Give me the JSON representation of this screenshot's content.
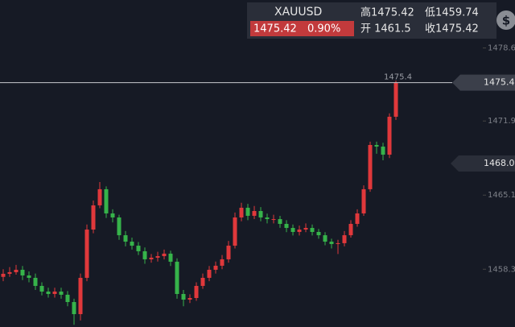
{
  "chart_data": {
    "type": "candlestick",
    "quote": {
      "symbol": "XAUUSD",
      "last": "1475.42",
      "change": "0.90%",
      "high": "高1475.42",
      "low": "低1459.74",
      "open": "开 1461.5",
      "close": "收1475.42"
    },
    "icon_label": "$",
    "up_color": "#e0383b",
    "down_color": "#36b34a",
    "ylim": [
      1453.0,
      1483.0
    ],
    "yticks": [
      1458.3,
      1465.1,
      1471.9,
      1478.6
    ],
    "price_line": {
      "value": 1475.42,
      "label": "1475.4",
      "tag": "1475.42"
    },
    "marker": {
      "value": 1468.0,
      "label": "1468.0"
    },
    "open": [
      1457.6,
      1457.88,
      1458.03,
      1458.25,
      1457.73,
      1457.51,
      1456.77,
      1456.25,
      1456.03,
      1456.25,
      1455.96,
      1455.29,
      1454.18,
      1457.51,
      1461.94,
      1464.16,
      1465.64,
      1463.42,
      1463.05,
      1461.42,
      1460.83,
      1460.46,
      1459.95,
      1459.21,
      1459.36,
      1459.5,
      1459.73,
      1458.99,
      1456.03,
      1455.51,
      1455.66,
      1456.77,
      1457.51,
      1458.25,
      1458.62,
      1459.21,
      1460.46,
      1463.05,
      1463.94,
      1463.2,
      1463.64,
      1463.05,
      1462.9,
      1462.9,
      1462.46,
      1462.09,
      1461.72,
      1461.94,
      1462.09,
      1461.72,
      1461.42,
      1460.83,
      1460.61,
      1460.69,
      1461.42,
      1462.46,
      1463.42,
      1465.64,
      1469.7,
      1469.55,
      1468.81,
      1472.29
    ],
    "close": [
      1457.88,
      1458.03,
      1458.25,
      1457.73,
      1457.51,
      1456.77,
      1456.25,
      1456.03,
      1456.25,
      1455.96,
      1455.29,
      1454.18,
      1457.51,
      1461.94,
      1464.16,
      1465.64,
      1463.42,
      1463.05,
      1461.42,
      1460.83,
      1460.46,
      1459.95,
      1459.21,
      1459.36,
      1459.5,
      1459.73,
      1458.99,
      1456.03,
      1455.51,
      1455.66,
      1456.77,
      1457.51,
      1458.25,
      1458.62,
      1459.21,
      1460.46,
      1463.05,
      1463.94,
      1463.2,
      1463.64,
      1463.05,
      1462.9,
      1462.9,
      1462.46,
      1462.09,
      1461.72,
      1461.94,
      1462.09,
      1461.72,
      1461.42,
      1460.83,
      1460.61,
      1460.69,
      1461.42,
      1462.46,
      1463.42,
      1465.64,
      1469.7,
      1469.55,
      1468.81,
      1472.29,
      1475.42
    ],
    "high": [
      1458.3,
      1458.5,
      1458.7,
      1458.6,
      1458.1,
      1457.9,
      1457.1,
      1456.6,
      1456.6,
      1456.6,
      1456.3,
      1455.6,
      1457.9,
      1462.4,
      1464.6,
      1466.3,
      1465.9,
      1463.8,
      1463.3,
      1461.8,
      1461.2,
      1460.8,
      1460.3,
      1459.7,
      1459.9,
      1460.1,
      1460.0,
      1459.3,
      1456.4,
      1456.0,
      1457.1,
      1457.9,
      1458.6,
      1459.0,
      1459.6,
      1460.9,
      1463.5,
      1464.4,
      1464.3,
      1464.1,
      1464.0,
      1463.4,
      1463.3,
      1463.2,
      1462.8,
      1462.4,
      1462.3,
      1462.5,
      1462.4,
      1462.0,
      1461.7,
      1461.1,
      1461.0,
      1461.8,
      1462.8,
      1463.8,
      1466.0,
      1470.0,
      1470.0,
      1469.9,
      1472.6,
      1475.6
    ],
    "low": [
      1457.2,
      1457.6,
      1457.8,
      1457.3,
      1457.1,
      1456.4,
      1455.9,
      1455.7,
      1455.7,
      1455.6,
      1454.9,
      1453.2,
      1453.6,
      1457.2,
      1461.6,
      1463.9,
      1463.0,
      1462.6,
      1461.0,
      1460.4,
      1460.1,
      1459.6,
      1458.8,
      1458.9,
      1459.0,
      1459.2,
      1458.6,
      1455.6,
      1454.9,
      1455.2,
      1455.4,
      1456.5,
      1457.2,
      1457.9,
      1458.3,
      1458.9,
      1460.2,
      1462.7,
      1462.8,
      1462.9,
      1462.7,
      1462.5,
      1462.5,
      1462.1,
      1461.7,
      1461.4,
      1461.4,
      1461.7,
      1461.4,
      1461.1,
      1460.5,
      1460.2,
      1459.7,
      1460.4,
      1461.2,
      1462.2,
      1463.2,
      1465.4,
      1468.9,
      1468.3,
      1468.5,
      1472.0
    ]
  }
}
